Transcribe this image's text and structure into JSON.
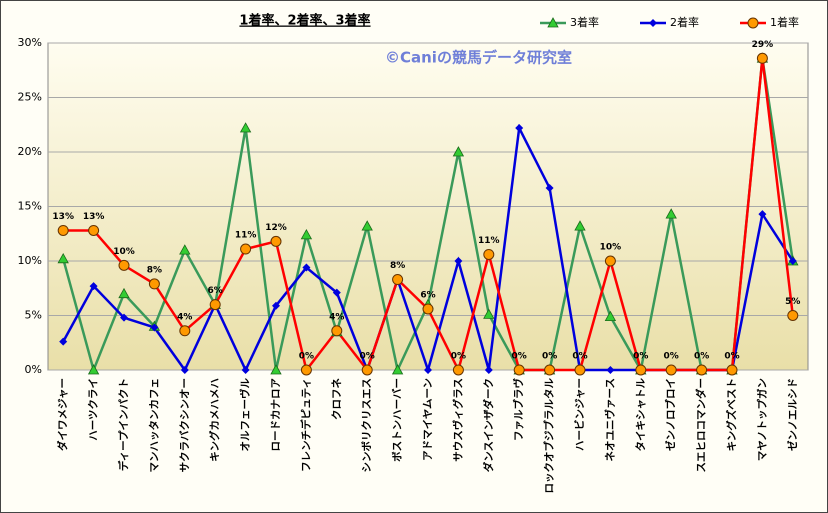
{
  "chart_data": {
    "type": "line",
    "title": "1着率、2着率、3着率",
    "annotation": "©Caniの競馬データ研究室",
    "categories": [
      "ダイワメジャー",
      "ハーツクライ",
      "ディープインパクト",
      "マンハッタンカフェ",
      "サクラバクシンオー",
      "キングカメハメハ",
      "オルフェーヴル",
      "ロードカナロア",
      "フレンチデピュティ",
      "クロフネ",
      "シンボリクリスエス",
      "ボストンハーバー",
      "アドマイヤムーン",
      "サウスヴィグラス",
      "ダンスインザダーク",
      "ファルブラヴ",
      "ロックオブジブラルタル",
      "ハービンジャー",
      "ネオユニヴァース",
      "タイキシャトル",
      "ゼンノロブロイ",
      "スエヒロコマンダー",
      "キングズベスト",
      "マヤノトップガン",
      "ゼンノエルシド"
    ],
    "series": [
      {
        "name": "3着率",
        "color": "#3a9a5a",
        "marker": "triangle",
        "marker_color": "#33cc33",
        "values": [
          10.2,
          0,
          7.0,
          4.0,
          11.0,
          6.0,
          22.2,
          0,
          12.4,
          3.5,
          13.2,
          0,
          6.0,
          20.0,
          5.1,
          0,
          0,
          13.2,
          4.9,
          0,
          14.3,
          0,
          0,
          28.6,
          10.0
        ]
      },
      {
        "name": "2着率",
        "color": "#0000dd",
        "marker": "diamond",
        "marker_color": "#0000dd",
        "values": [
          2.6,
          7.7,
          4.8,
          3.9,
          0,
          6.0,
          0,
          5.9,
          9.4,
          7.1,
          0,
          8.3,
          0,
          10.0,
          0,
          22.2,
          16.7,
          0,
          0,
          0,
          0,
          0,
          0,
          14.3,
          10.0
        ]
      },
      {
        "name": "1着率",
        "color": "#ff0000",
        "marker": "circle",
        "marker_color": "#ff9900",
        "values": [
          12.8,
          12.8,
          9.6,
          7.9,
          3.6,
          6.0,
          11.1,
          11.8,
          0,
          3.6,
          0,
          8.3,
          5.6,
          0,
          10.6,
          0,
          0,
          0,
          10.0,
          0,
          0,
          0,
          0,
          28.6,
          5.0
        ],
        "value_labels": [
          "13%",
          "13%",
          "10%",
          "8%",
          "4%",
          "6%",
          "11%",
          "12%",
          "0%",
          "4%",
          "0%",
          "8%",
          "6%",
          "0%",
          "11%",
          "0%",
          "0%",
          "0%",
          "10%",
          "0%",
          "0%",
          "0%",
          "0%",
          "29%",
          "5%"
        ]
      }
    ],
    "ylim": [
      0,
      30
    ],
    "yticks": [
      {
        "value": 0,
        "label": "0%"
      },
      {
        "value": 5,
        "label": "5%"
      },
      {
        "value": 10,
        "label": "10%"
      },
      {
        "value": 15,
        "label": "15%"
      },
      {
        "value": 20,
        "label": "20%"
      },
      {
        "value": 25,
        "label": "25%"
      },
      {
        "value": 30,
        "label": "30%"
      }
    ],
    "grid": true
  }
}
